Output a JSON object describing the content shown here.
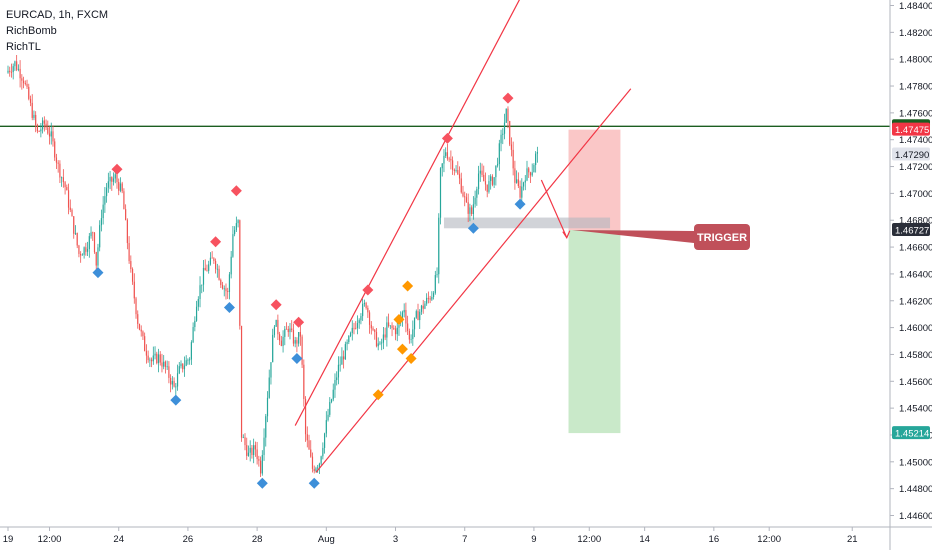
{
  "header": {
    "symbol": "EURCAD, 1h, FXCM",
    "indicators": [
      "RichBomb",
      "RichTL"
    ]
  },
  "chart_data": {
    "type": "candlestick",
    "title": "EURCAD, 1h, FXCM",
    "ylim": [
      1.445,
      1.485
    ],
    "y_ticks": [
      "1.48400",
      "1.48200",
      "1.48000",
      "1.47800",
      "1.47600",
      "1.47400",
      "1.47200",
      "1.47000",
      "1.46800",
      "1.46600",
      "1.46400",
      "1.46200",
      "1.46000",
      "1.45800",
      "1.45600",
      "1.45400",
      "1.45200",
      "1.45000",
      "1.44800",
      "1.44600"
    ],
    "y_tick_values": [
      1.484,
      1.482,
      1.48,
      1.478,
      1.476,
      1.474,
      1.472,
      1.47,
      1.468,
      1.466,
      1.464,
      1.462,
      1.46,
      1.458,
      1.456,
      1.454,
      1.452,
      1.45,
      1.448,
      1.446
    ],
    "x_ticks": [
      "19",
      "12:00",
      "24",
      "26",
      "28",
      "Aug",
      "3",
      "7",
      "9",
      "12:00",
      "14",
      "16",
      "12:00",
      "21"
    ],
    "x_tick_index": [
      0,
      24,
      64,
      104,
      144,
      184,
      224,
      264,
      304,
      336,
      368,
      408,
      440,
      488
    ],
    "price_labels": [
      {
        "text": "1.47500",
        "value": 1.475,
        "color": "#1b5e20"
      },
      {
        "text": "1.47475",
        "value": 1.47475,
        "color": "#f23645"
      },
      {
        "text": "1.47290",
        "value": 1.4729,
        "color": "#e0e3eb"
      },
      {
        "text": "1.46727",
        "value": 1.46727,
        "color": "#2a2e39"
      },
      {
        "text": "1.45214",
        "value": 1.45214,
        "color": "#26a69a"
      }
    ],
    "annotation": {
      "text": "TRIGGER"
    },
    "horizontal_line": {
      "value": 1.475,
      "color": "#1b5e20"
    },
    "position": {
      "entry": 1.46727,
      "stop": 1.47475,
      "target": 1.45214,
      "start_index": 324,
      "end_index": 354
    },
    "zone": {
      "top": 1.4682,
      "bottom": 1.4674,
      "start_index": 252,
      "end_index": 348
    },
    "channel_upper": [
      {
        "i": 166,
        "v": 1.4527
      },
      {
        "i": 300,
        "v": 1.4855
      }
    ],
    "channel_lower": [
      {
        "i": 178,
        "v": 1.4492
      },
      {
        "i": 360,
        "v": 1.4778
      }
    ],
    "markers": [
      {
        "i": 63,
        "v": 1.4718,
        "type": "high",
        "color": "#f7525f"
      },
      {
        "i": 52,
        "v": 1.4641,
        "type": "low",
        "color": "#3d8fd9"
      },
      {
        "i": 132,
        "v": 1.4702,
        "type": "high",
        "color": "#f7525f"
      },
      {
        "i": 120,
        "v": 1.4664,
        "type": "high",
        "color": "#f7525f"
      },
      {
        "i": 128,
        "v": 1.4615,
        "type": "low",
        "color": "#3d8fd9"
      },
      {
        "i": 97,
        "v": 1.4546,
        "type": "low",
        "color": "#3d8fd9"
      },
      {
        "i": 155,
        "v": 1.4617,
        "type": "high",
        "color": "#f7525f"
      },
      {
        "i": 168,
        "v": 1.4604,
        "type": "high",
        "color": "#f7525f"
      },
      {
        "i": 167,
        "v": 1.4577,
        "type": "low",
        "color": "#3d8fd9"
      },
      {
        "i": 147,
        "v": 1.4484,
        "type": "low",
        "color": "#3d8fd9"
      },
      {
        "i": 177,
        "v": 1.4484,
        "type": "low",
        "color": "#3d8fd9"
      },
      {
        "i": 208,
        "v": 1.4628,
        "type": "high",
        "color": "#f7525f"
      },
      {
        "i": 214,
        "v": 1.455,
        "type": "low",
        "color": "#ff9800"
      },
      {
        "i": 226,
        "v": 1.4606,
        "type": "high",
        "color": "#ff9800"
      },
      {
        "i": 228,
        "v": 1.4584,
        "type": "low",
        "color": "#ff9800"
      },
      {
        "i": 231,
        "v": 1.4631,
        "type": "high",
        "color": "#ff9800"
      },
      {
        "i": 233,
        "v": 1.4577,
        "type": "low",
        "color": "#ff9800"
      },
      {
        "i": 254,
        "v": 1.4741,
        "type": "high",
        "color": "#f7525f"
      },
      {
        "i": 269,
        "v": 1.4674,
        "type": "low",
        "color": "#3d8fd9"
      },
      {
        "i": 289,
        "v": 1.4771,
        "type": "high",
        "color": "#f7525f"
      },
      {
        "i": 296,
        "v": 1.4692,
        "type": "low",
        "color": "#3d8fd9"
      }
    ],
    "path": [
      {
        "i": 0,
        "v": 1.479
      },
      {
        "i": 5,
        "v": 1.4797
      },
      {
        "i": 10,
        "v": 1.4785
      },
      {
        "i": 14,
        "v": 1.4765
      },
      {
        "i": 18,
        "v": 1.4745
      },
      {
        "i": 22,
        "v": 1.4752
      },
      {
        "i": 26,
        "v": 1.4742
      },
      {
        "i": 30,
        "v": 1.472
      },
      {
        "i": 34,
        "v": 1.4705
      },
      {
        "i": 38,
        "v": 1.468
      },
      {
        "i": 42,
        "v": 1.4655
      },
      {
        "i": 46,
        "v": 1.466
      },
      {
        "i": 50,
        "v": 1.4672
      },
      {
        "i": 52,
        "v": 1.4648
      },
      {
        "i": 55,
        "v": 1.4685
      },
      {
        "i": 58,
        "v": 1.4705
      },
      {
        "i": 63,
        "v": 1.4712
      },
      {
        "i": 67,
        "v": 1.47
      },
      {
        "i": 72,
        "v": 1.464
      },
      {
        "i": 76,
        "v": 1.4605
      },
      {
        "i": 80,
        "v": 1.4585
      },
      {
        "i": 84,
        "v": 1.4575
      },
      {
        "i": 88,
        "v": 1.4578
      },
      {
        "i": 92,
        "v": 1.457
      },
      {
        "i": 97,
        "v": 1.4555
      },
      {
        "i": 100,
        "v": 1.4568
      },
      {
        "i": 106,
        "v": 1.4578
      },
      {
        "i": 110,
        "v": 1.462
      },
      {
        "i": 114,
        "v": 1.464
      },
      {
        "i": 120,
        "v": 1.4652
      },
      {
        "i": 124,
        "v": 1.4635
      },
      {
        "i": 128,
        "v": 1.4625
      },
      {
        "i": 131,
        "v": 1.467
      },
      {
        "i": 134,
        "v": 1.4678
      },
      {
        "i": 136,
        "v": 1.452
      },
      {
        "i": 140,
        "v": 1.4505
      },
      {
        "i": 144,
        "v": 1.451
      },
      {
        "i": 147,
        "v": 1.4495
      },
      {
        "i": 151,
        "v": 1.455
      },
      {
        "i": 155,
        "v": 1.4605
      },
      {
        "i": 159,
        "v": 1.459
      },
      {
        "i": 163,
        "v": 1.46
      },
      {
        "i": 167,
        "v": 1.4588
      },
      {
        "i": 170,
        "v": 1.4595
      },
      {
        "i": 173,
        "v": 1.452
      },
      {
        "i": 177,
        "v": 1.4495
      },
      {
        "i": 181,
        "v": 1.45
      },
      {
        "i": 186,
        "v": 1.4535
      },
      {
        "i": 192,
        "v": 1.457
      },
      {
        "i": 198,
        "v": 1.459
      },
      {
        "i": 204,
        "v": 1.461
      },
      {
        "i": 208,
        "v": 1.4618
      },
      {
        "i": 212,
        "v": 1.4595
      },
      {
        "i": 216,
        "v": 1.4585
      },
      {
        "i": 220,
        "v": 1.46
      },
      {
        "i": 226,
        "v": 1.4598
      },
      {
        "i": 230,
        "v": 1.4615
      },
      {
        "i": 233,
        "v": 1.459
      },
      {
        "i": 237,
        "v": 1.4608
      },
      {
        "i": 242,
        "v": 1.4618
      },
      {
        "i": 246,
        "v": 1.4625
      },
      {
        "i": 249,
        "v": 1.464
      },
      {
        "i": 251,
        "v": 1.4715
      },
      {
        "i": 254,
        "v": 1.4732
      },
      {
        "i": 258,
        "v": 1.4722
      },
      {
        "i": 262,
        "v": 1.471
      },
      {
        "i": 266,
        "v": 1.469
      },
      {
        "i": 269,
        "v": 1.4685
      },
      {
        "i": 273,
        "v": 1.4715
      },
      {
        "i": 278,
        "v": 1.4705
      },
      {
        "i": 282,
        "v": 1.4712
      },
      {
        "i": 286,
        "v": 1.474
      },
      {
        "i": 289,
        "v": 1.476
      },
      {
        "i": 291,
        "v": 1.474
      },
      {
        "i": 294,
        "v": 1.471
      },
      {
        "i": 297,
        "v": 1.47
      },
      {
        "i": 300,
        "v": 1.4714
      },
      {
        "i": 304,
        "v": 1.4718
      },
      {
        "i": 306,
        "v": 1.4728
      }
    ]
  }
}
